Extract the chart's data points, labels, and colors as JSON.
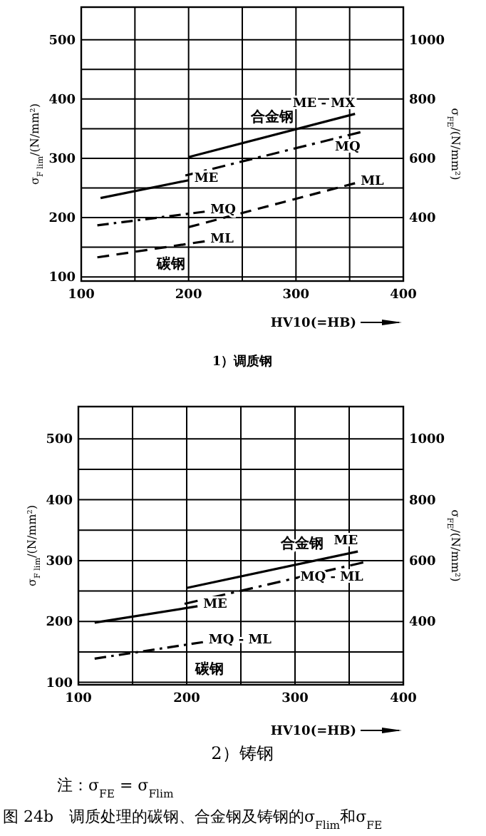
{
  "chart_data": [
    {
      "type": "line",
      "title": "1）调质钢",
      "xlabel": "HV10(=HB)",
      "ylabel": "σ$_{F lim}$/(N/mm²)",
      "y2label": "σ$_{FE}$/(N/mm²)",
      "xlim": [
        100,
        400
      ],
      "xticks": [
        100,
        {
          "value": 150,
          "label": null
        },
        200,
        {
          "value": 250,
          "label": null
        },
        300,
        {
          "value": 350,
          "label": null
        },
        400
      ],
      "ylim": [
        93,
        555
      ],
      "yticks": [
        100,
        {
          "value": 150,
          "label": null
        },
        200,
        {
          "value": 250,
          "label": null
        },
        300,
        {
          "value": 350,
          "label": null
        },
        400,
        {
          "value": 450,
          "label": null
        },
        500
      ],
      "y2lim": [
        186,
        1110
      ],
      "y2ticks": [
        400,
        600,
        800,
        1000
      ],
      "grid": true,
      "series": [
        {
          "name": "ME - MX",
          "color": "#000000",
          "line_style": "solid",
          "x": [
            200,
            355
          ],
          "values": [
            302,
            375
          ]
        },
        {
          "name": "MQ",
          "color": "#000000",
          "line_style": "dashdot",
          "x": [
            197,
            360
          ],
          "values": [
            271,
            344
          ]
        },
        {
          "name": "ML",
          "color": "#000000",
          "line_style": "dashed",
          "x": [
            200,
            355
          ],
          "values": [
            184,
            258
          ]
        },
        {
          "name": "ME",
          "color": "#000000",
          "line_style": "solid",
          "x": [
            118,
            200
          ],
          "values": [
            233,
            263
          ]
        },
        {
          "name": "MQ",
          "color": "#000000",
          "line_style": "dashdot",
          "x": [
            115,
            215
          ],
          "values": [
            187,
            210
          ]
        },
        {
          "name": "ML",
          "color": "#000000",
          "line_style": "dashed",
          "x": [
            115,
            215
          ],
          "values": [
            133,
            160
          ]
        }
      ],
      "annotations": [
        "合金钢",
        "碳钢"
      ]
    },
    {
      "type": "line",
      "title": "2）铸钢",
      "xlabel": "HV10(=HB)",
      "ylabel": "σ$_{F lim}$/(N/mm²)",
      "y2label": "σ$_{FE}$/(N/mm²)",
      "xlim": [
        100,
        400
      ],
      "xticks": [
        100,
        {
          "value": 150,
          "label": null
        },
        200,
        {
          "value": 250,
          "label": null
        },
        300,
        {
          "value": 350,
          "label": null
        },
        400
      ],
      "ylim": [
        96,
        553
      ],
      "yticks": [
        100,
        {
          "value": 150,
          "label": null
        },
        200,
        {
          "value": 250,
          "label": null
        },
        300,
        {
          "value": 350,
          "label": null
        },
        400,
        {
          "value": 450,
          "label": null
        },
        500
      ],
      "y2lim": [
        192,
        1106
      ],
      "y2ticks": [
        400,
        600,
        800,
        1000
      ],
      "grid": true,
      "series": [
        {
          "name": "ME",
          "color": "#000000",
          "line_style": "solid",
          "x": [
            200,
            358
          ],
          "values": [
            255,
            315
          ]
        },
        {
          "name": "MQ - ML",
          "color": "#000000",
          "line_style": "dashdot",
          "x": [
            198,
            363
          ],
          "values": [
            229,
            297
          ]
        },
        {
          "name": "ME",
          "color": "#000000",
          "line_style": "solid",
          "x": [
            115,
            210
          ],
          "values": [
            198,
            225
          ]
        },
        {
          "name": "MQ - ML",
          "color": "#000000",
          "line_style": "dashdot",
          "x": [
            115,
            215
          ],
          "values": [
            139,
            166
          ]
        }
      ],
      "annotations": [
        "合金钢",
        "碳钢",
        "注：σ$_{FE}$ = σ$_{Flim}$",
        "图 24b　调质处理的碳钢、合金钢及铸钢的σ$_{Flim}$和σ$_{FE}$"
      ]
    }
  ]
}
